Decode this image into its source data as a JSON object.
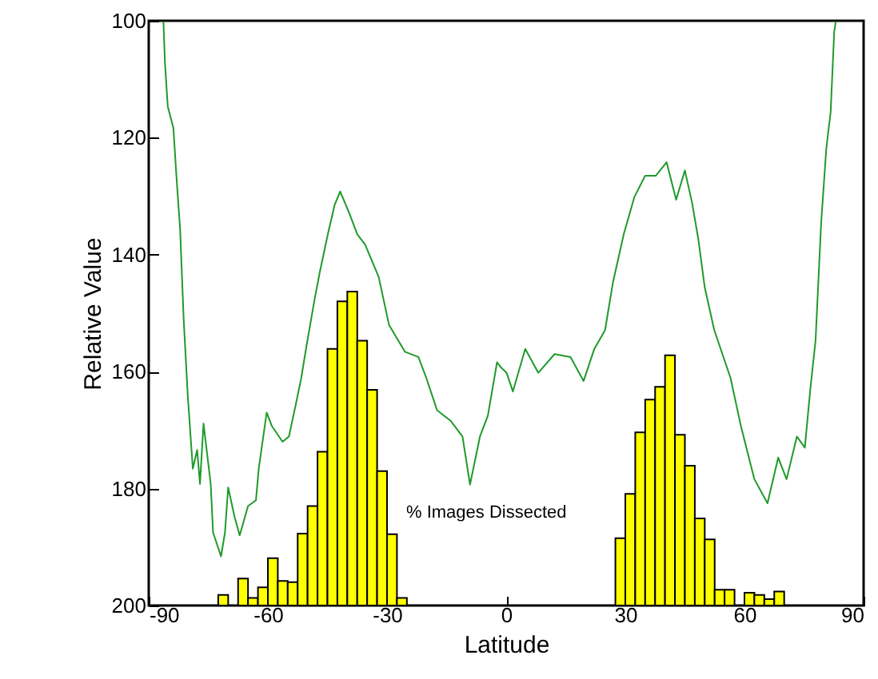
{
  "chart_data": {
    "type": "line",
    "xlabel": "Latitude",
    "ylabel": "Relative Value",
    "xlim": [
      -90,
      90
    ],
    "xticks": [
      -90,
      -60,
      -30,
      0,
      30,
      60,
      90
    ],
    "ylim": [
      200,
      100
    ],
    "yticks": [
      100,
      120,
      140,
      160,
      180,
      200
    ],
    "grid": false,
    "annotations": [
      "% Images Dissected"
    ],
    "series": [
      {
        "type": "bar",
        "color": "#ffff00",
        "x": [
          -71.25,
          -66.25,
          -63.75,
          -61.25,
          -58.75,
          -56.25,
          -53.75,
          -51.25,
          -48.75,
          -46.25,
          -43.75,
          -41.25,
          -38.75,
          -36.25,
          -33.75,
          -31.25,
          -28.75,
          -26.25,
          28.75,
          31.25,
          33.75,
          36.25,
          38.75,
          41.25,
          43.75,
          46.25,
          48.75,
          51.25,
          53.75,
          56.25,
          61.25,
          63.75,
          66.25,
          68.75
        ],
        "base": [
          200,
          200,
          200,
          200,
          200,
          200,
          200,
          200,
          200,
          200,
          200,
          200,
          200,
          200,
          200,
          200,
          200,
          200,
          200,
          200,
          200,
          200,
          200,
          200,
          200,
          200,
          200,
          200,
          200,
          200,
          200,
          200,
          200,
          200
        ],
        "values": [
          -1.8,
          -4.6,
          -1.3,
          -3.1,
          -8.1,
          -4.2,
          -4.0,
          -12.3,
          -17.0,
          -26.3,
          -43.9,
          -52.0,
          -53.7,
          -45.3,
          -36.9,
          -23.0,
          -12.2,
          -1.3,
          -11.5,
          -19.1,
          -29.6,
          -35.2,
          -37.4,
          -42.8,
          -29.2,
          -23.9,
          -14.9,
          -11.3,
          -2.7,
          -2.7,
          -2.2,
          -1.8,
          -1.1,
          -2.4
        ]
      },
      {
        "color": "#1f9a2a",
        "x": [
          -86.3,
          -85.9,
          -85.2,
          -83.8,
          -82.9,
          -82.1,
          -81.2,
          -80.2,
          -78.9,
          -77.8,
          -77.1,
          -76.2,
          -74.4,
          -73.8,
          -71.8,
          -70.8,
          -70.0,
          -68.4,
          -67.1,
          -65.0,
          -63.0,
          -62.3,
          -60.3,
          -59.0,
          -56.3,
          -54.7,
          -53.0,
          -51.6,
          -50.3,
          -48.2,
          -46.9,
          -44.9,
          -43.2,
          -41.8,
          -39.5,
          -37.5,
          -35.5,
          -32.1,
          -29.5,
          -25.5,
          -22.1,
          -20.1,
          -17.4,
          -14.0,
          -11.0,
          -9.1,
          -6.6,
          -4.6,
          -2.3,
          -1.3,
          0.1,
          1.7,
          4.8,
          8.1,
          12.2,
          16.2,
          19.5,
          22.2,
          24.9,
          26.9,
          29.6,
          32.3,
          35.0,
          37.7,
          40.4,
          42.8,
          45.0,
          46.8,
          48.4,
          50.0,
          52.4,
          56.5,
          59.1,
          62.5,
          65.8,
          68.5,
          70.6,
          73.2,
          75.2,
          76.6,
          77.9,
          79.3,
          80.6,
          81.7,
          82.6,
          83.0
        ],
        "values": [
          100.1,
          107.4,
          114.7,
          118.3,
          127.9,
          135.6,
          151.1,
          163.8,
          176.6,
          173.4,
          179.2,
          168.9,
          179.2,
          187.5,
          191.6,
          187.5,
          179.8,
          184.8,
          188.0,
          183.0,
          182.0,
          176.6,
          167.0,
          169.3,
          172.0,
          171.1,
          165.7,
          161.1,
          155.7,
          147.5,
          142.9,
          136.5,
          131.5,
          129.2,
          132.9,
          136.5,
          138.3,
          143.8,
          152.0,
          156.6,
          157.5,
          161.1,
          166.6,
          168.4,
          171.1,
          179.3,
          171.1,
          167.5,
          158.4,
          159.3,
          160.2,
          163.4,
          156.1,
          160.2,
          157.0,
          157.5,
          161.6,
          156.1,
          152.9,
          144.7,
          136.5,
          130.1,
          126.5,
          126.5,
          124.2,
          130.6,
          125.6,
          131.1,
          137.4,
          145.6,
          152.9,
          161.1,
          169.3,
          178.4,
          182.5,
          174.7,
          178.4,
          171.1,
          173.0,
          162.9,
          154.7,
          134.7,
          121.9,
          115.6,
          101.9,
          100.1
        ]
      }
    ]
  }
}
